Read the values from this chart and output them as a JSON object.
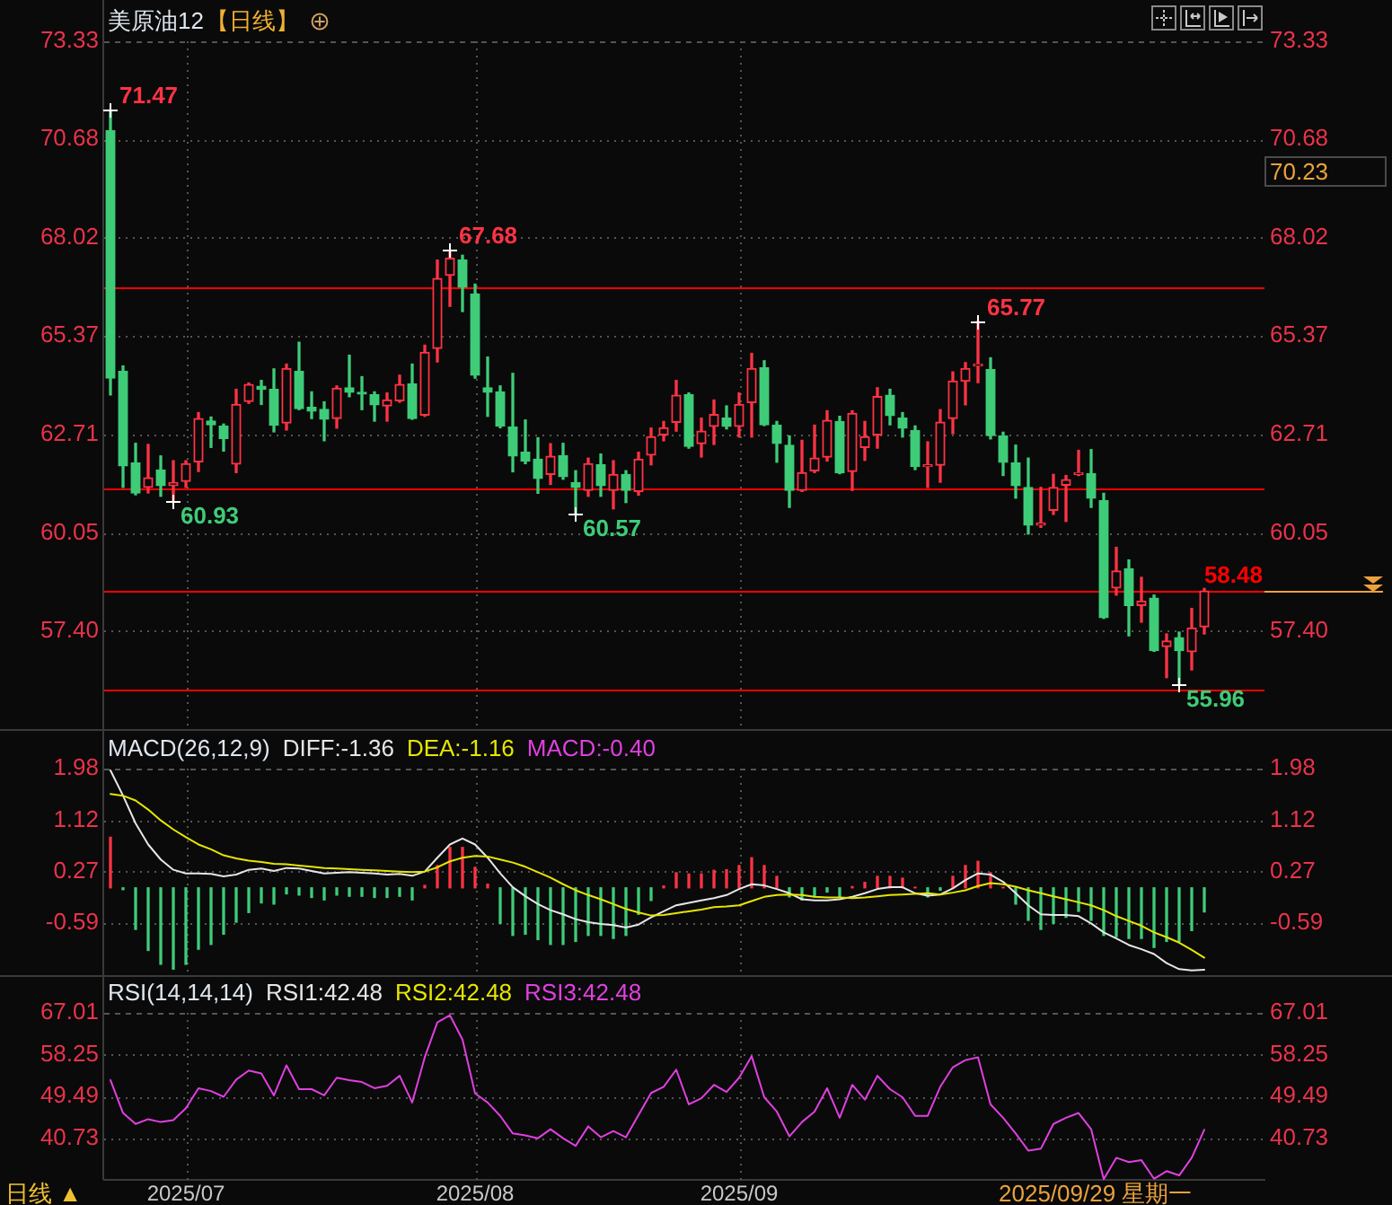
{
  "chart_data": [
    {
      "type": "candlestick",
      "title": "美原油12",
      "subtitle": "【日线】",
      "categories": [
        null,
        null,
        null,
        null,
        null,
        null,
        "2025/07",
        null,
        null,
        null,
        null,
        null,
        null,
        null,
        null,
        null,
        null,
        null,
        null,
        null,
        null,
        null,
        null,
        null,
        null,
        null,
        null,
        null,
        null,
        "2025/08",
        null,
        null,
        null,
        null,
        null,
        null,
        null,
        null,
        null,
        null,
        null,
        null,
        null,
        null,
        null,
        null,
        null,
        null,
        null,
        null,
        "2025/09",
        null,
        null,
        null,
        null,
        null,
        null,
        null,
        null,
        null,
        null,
        null,
        null,
        null,
        null,
        null,
        null,
        null,
        null,
        null,
        null,
        null,
        null,
        null,
        null,
        null,
        null,
        null,
        null,
        null,
        null,
        null,
        null,
        null,
        null,
        null,
        null,
        null
      ],
      "ohlc": [
        [
          70.92,
          71.47,
          63.78,
          64.23
        ],
        [
          64.41,
          64.56,
          61.28,
          61.86
        ],
        [
          61.94,
          62.47,
          61.08,
          61.13
        ],
        [
          61.28,
          62.44,
          61.13,
          61.54
        ],
        [
          61.75,
          62.13,
          61.04,
          61.33
        ],
        [
          61.33,
          62,
          60.93,
          61.41
        ],
        [
          61.44,
          62,
          61.28,
          61.92
        ],
        [
          61.97,
          63.3,
          61.71,
          63.14
        ],
        [
          63.07,
          63.18,
          62.36,
          62.97
        ],
        [
          62.93,
          62.99,
          62.26,
          62.6
        ],
        [
          61.91,
          63.93,
          61.68,
          63.52
        ],
        [
          63.6,
          64.1,
          63.55,
          64.06
        ],
        [
          64.01,
          64.17,
          63.52,
          63.93
        ],
        [
          63.93,
          64.48,
          62.78,
          62.96
        ],
        [
          63.02,
          64.61,
          62.83,
          64.49
        ],
        [
          64.41,
          65.2,
          63.38,
          63.41
        ],
        [
          63.44,
          63.86,
          63.14,
          63.34
        ],
        [
          63.39,
          63.59,
          62.54,
          63.12
        ],
        [
          63.14,
          64.02,
          62.88,
          63.96
        ],
        [
          63.97,
          64.85,
          63.73,
          63.85
        ],
        [
          63.83,
          64.27,
          63.38,
          63.8
        ],
        [
          63.78,
          63.86,
          63.07,
          63.51
        ],
        [
          63.48,
          63.83,
          63.07,
          63.64
        ],
        [
          63.62,
          64.31,
          63.58,
          64.06
        ],
        [
          64.07,
          64.61,
          63.12,
          63.14
        ],
        [
          63.23,
          65.12,
          63.2,
          64.93
        ],
        [
          65.03,
          67.42,
          64.67,
          66.92
        ],
        [
          67.01,
          67.68,
          66.17,
          67.47
        ],
        [
          67.42,
          67.55,
          66.03,
          66.69
        ],
        [
          66.5,
          66.77,
          64.23,
          64.31
        ],
        [
          63.97,
          64.8,
          63.2,
          63.85
        ],
        [
          63.86,
          64.02,
          62.89,
          62.94
        ],
        [
          62.91,
          64.36,
          61.7,
          62.13
        ],
        [
          62.23,
          63.1,
          61.92,
          61.99
        ],
        [
          62.04,
          62.62,
          61.12,
          61.52
        ],
        [
          61.63,
          62.46,
          61.36,
          62.12
        ],
        [
          62.13,
          62.47,
          61.5,
          61.57
        ],
        [
          61.41,
          61.73,
          60.57,
          61.28
        ],
        [
          61.2,
          62.07,
          61.04,
          61.92
        ],
        [
          61.89,
          62.18,
          61.04,
          61.33
        ],
        [
          61.2,
          62,
          60.7,
          61.63
        ],
        [
          61.63,
          61.73,
          60.87,
          61.2
        ],
        [
          61.17,
          62.23,
          61.07,
          62.04
        ],
        [
          62.15,
          62.88,
          61.89,
          62.65
        ],
        [
          62.7,
          63.06,
          62.54,
          62.89
        ],
        [
          63.04,
          64.17,
          62.8,
          63.77
        ],
        [
          63.78,
          63.83,
          62.34,
          62.39
        ],
        [
          62.46,
          63.15,
          62.1,
          62.8
        ],
        [
          62.93,
          63.64,
          62.44,
          63.25
        ],
        [
          63.15,
          63.48,
          62.86,
          62.93
        ],
        [
          62.93,
          63.83,
          62.64,
          63.52
        ],
        [
          63.57,
          64.9,
          62.64,
          64.49
        ],
        [
          64.51,
          64.7,
          62.95,
          62.97
        ],
        [
          62.96,
          63.06,
          61.96,
          62.47
        ],
        [
          62.42,
          62.67,
          60.74,
          61.2
        ],
        [
          61.2,
          62.55,
          61.17,
          61.68
        ],
        [
          61.73,
          62.96,
          61.68,
          62.07
        ],
        [
          62.1,
          63.35,
          61.99,
          63.09
        ],
        [
          63.06,
          63.2,
          61.65,
          61.67
        ],
        [
          61.71,
          63.35,
          61.2,
          63.28
        ],
        [
          62.36,
          63.06,
          62.01,
          62.65
        ],
        [
          62.7,
          63.97,
          62.34,
          63.73
        ],
        [
          63.77,
          63.93,
          62.97,
          63.22
        ],
        [
          63.15,
          63.3,
          62.64,
          62.88
        ],
        [
          62.81,
          62.94,
          61.76,
          61.84
        ],
        [
          61.84,
          62.51,
          61.28,
          61.89
        ],
        [
          61.88,
          63.38,
          61.42,
          63.04
        ],
        [
          63.14,
          64.4,
          62.73,
          64.15
        ],
        [
          64.15,
          64.65,
          63.51,
          64.49
        ],
        [
          64.56,
          65.77,
          64.11,
          64.61
        ],
        [
          64.46,
          64.78,
          62.59,
          62.68
        ],
        [
          62.67,
          62.77,
          61.6,
          61.96
        ],
        [
          61.94,
          62.42,
          60.99,
          61.33
        ],
        [
          61.28,
          62.07,
          60.02,
          60.26
        ],
        [
          60.26,
          61.28,
          60.2,
          60.31
        ],
        [
          60.66,
          61.63,
          60.55,
          61.28
        ],
        [
          61.34,
          61.6,
          60.36,
          61.49
        ],
        [
          61.63,
          62.28,
          61.6,
          61.68
        ],
        [
          61.65,
          62.3,
          60.74,
          60.99
        ],
        [
          60.92,
          61.12,
          57.74,
          57.76
        ],
        [
          58.56,
          59.66,
          58.37,
          59.02
        ],
        [
          59.08,
          59.32,
          57.27,
          58.09
        ],
        [
          58.09,
          58.85,
          57.64,
          58.21
        ],
        [
          58.29,
          58.37,
          56.85,
          56.87
        ],
        [
          56.98,
          57.32,
          56.14,
          57.13
        ],
        [
          57.22,
          57.37,
          55.96,
          56.87
        ],
        [
          56.84,
          58.01,
          56.35,
          57.48
        ],
        [
          57.51,
          58.55,
          57.32,
          58.48
        ]
      ],
      "value_labels": [
        "71.47",
        null,
        null,
        null,
        null,
        "60.93",
        null,
        null,
        null,
        null,
        null,
        null,
        null,
        null,
        null,
        null,
        null,
        null,
        null,
        null,
        null,
        null,
        null,
        null,
        null,
        null,
        null,
        "67.68",
        null,
        null,
        null,
        null,
        null,
        null,
        null,
        null,
        null,
        "60.57",
        null,
        null,
        null,
        null,
        null,
        null,
        null,
        null,
        null,
        null,
        null,
        null,
        null,
        null,
        null,
        null,
        null,
        null,
        null,
        null,
        null,
        null,
        null,
        null,
        null,
        null,
        null,
        null,
        null,
        null,
        null,
        "65.77",
        null,
        null,
        null,
        null,
        null,
        null,
        null,
        null,
        null,
        null,
        null,
        null,
        null,
        null,
        null,
        "55.96",
        null,
        null
      ],
      "colors": [
        "#3ecc78",
        "#3ecc78",
        "#3ecc78",
        "#ff3344",
        "#3ecc78",
        "#ff3344",
        "#ff3344",
        "#ff3344",
        "#3ecc78",
        "#3ecc78",
        "#ff3344",
        "#ff3344",
        "#3ecc78",
        "#3ecc78",
        "#ff3344",
        "#3ecc78",
        "#3ecc78",
        "#3ecc78",
        "#ff3344",
        "#3ecc78",
        "#3ecc78",
        "#3ecc78",
        "#ff3344",
        "#ff3344",
        "#3ecc78",
        "#ff3344",
        "#ff3344",
        "#ff3344",
        "#3ecc78",
        "#3ecc78",
        "#3ecc78",
        "#3ecc78",
        "#3ecc78",
        "#3ecc78",
        "#3ecc78",
        "#ff3344",
        "#3ecc78",
        "#3ecc78",
        "#ff3344",
        "#3ecc78",
        "#ff3344",
        "#3ecc78",
        "#ff3344",
        "#ff3344",
        "#ff3344",
        "#ff3344",
        "#3ecc78",
        "#ff3344",
        "#ff3344",
        "#3ecc78",
        "#ff3344",
        "#ff3344",
        "#3ecc78",
        "#3ecc78",
        "#3ecc78",
        "#ff3344",
        "#ff3344",
        "#ff3344",
        "#3ecc78",
        "#ff3344",
        "#ff3344",
        "#ff3344",
        "#3ecc78",
        "#3ecc78",
        "#3ecc78",
        "#ff3344",
        "#ff3344",
        "#ff3344",
        "#ff3344",
        "#ff3344",
        "#3ecc78",
        "#3ecc78",
        "#3ecc78",
        "#3ecc78",
        "#ff3344",
        "#ff3344",
        "#ff3344",
        "#ff3344",
        "#3ecc78",
        "#3ecc78",
        "#ff3344",
        "#3ecc78",
        "#ff3344",
        "#3ecc78",
        "#ff3344",
        "#3ecc78",
        "#ff3344",
        "#ff3344"
      ],
      "ylim": [
        54.75,
        73.33
      ],
      "yticks": [
        {
          "value": 57.4,
          "label": "57.40"
        },
        60.05,
        62.71,
        65.37,
        68.02,
        70.68,
        73.33
      ],
      "y2lim": [
        54.75,
        73.33
      ],
      "y2ticks": [
        {
          "value": 57.4,
          "label": "57.40"
        },
        60.05,
        62.71,
        65.37,
        68.02,
        70.68,
        73.33
      ],
      "grid": true,
      "tick_labels": "y",
      "ref_lines": [
        {
          "axis": "y",
          "value": 66.67,
          "color": "#ff0000"
        },
        {
          "axis": "y",
          "value": 61.25,
          "color": "#ff0000"
        },
        {
          "axis": "y",
          "value": 55.82,
          "color": "#ff0000"
        },
        {
          "axis": "y",
          "value": 58.48,
          "label": "58.48",
          "color": "#ff0000"
        }
      ],
      "annotations": [
        "70.23"
      ]
    },
    {
      "type": "line",
      "title": "MACD(26,12,9)",
      "categories": [
        null,
        null,
        null,
        null,
        null,
        null,
        "2025/07",
        null,
        null,
        null,
        null,
        null,
        null,
        null,
        null,
        null,
        null,
        null,
        null,
        null,
        null,
        null,
        null,
        null,
        null,
        null,
        null,
        null,
        null,
        "2025/08",
        null,
        null,
        null,
        null,
        null,
        null,
        null,
        null,
        null,
        null,
        null,
        null,
        null,
        null,
        null,
        null,
        null,
        null,
        null,
        null,
        "2025/09",
        null,
        null,
        null,
        null,
        null,
        null,
        null,
        null,
        null,
        null,
        null,
        null,
        null,
        null,
        null,
        null,
        null,
        null,
        null,
        null,
        null,
        null,
        null,
        null,
        null,
        null,
        null,
        null,
        null,
        null,
        null,
        null,
        null,
        null,
        null,
        null,
        null
      ],
      "series": [
        {
          "name": "DIFF:-1.36",
          "color": "#e6e6e6",
          "values": [
            1.95,
            1.53,
            1.07,
            0.72,
            0.47,
            0.3,
            0.24,
            0.24,
            0.23,
            0.19,
            0.22,
            0.3,
            0.32,
            0.28,
            0.33,
            0.32,
            0.28,
            0.24,
            0.25,
            0.26,
            0.25,
            0.24,
            0.22,
            0.23,
            0.2,
            0.27,
            0.5,
            0.72,
            0.82,
            0.72,
            0.5,
            0.24,
            0.01,
            -0.14,
            -0.27,
            -0.37,
            -0.44,
            -0.52,
            -0.57,
            -0.6,
            -0.62,
            -0.66,
            -0.61,
            -0.49,
            -0.39,
            -0.29,
            -0.25,
            -0.21,
            -0.17,
            -0.12,
            -0.02,
            0.06,
            0.04,
            -0.02,
            -0.09,
            -0.19,
            -0.21,
            -0.21,
            -0.19,
            -0.15,
            -0.09,
            -0.02,
            0.01,
            0.01,
            -0.09,
            -0.13,
            -0.11,
            -0.01,
            0.13,
            0.24,
            0.22,
            0.1,
            -0.09,
            -0.29,
            -0.44,
            -0.45,
            -0.45,
            -0.47,
            -0.59,
            -0.74,
            -0.84,
            -0.95,
            -1.02,
            -1.1,
            -1.25,
            -1.35,
            -1.37,
            -1.36
          ]
        },
        {
          "name": "DEA:-1.16",
          "color": "#e6e600",
          "values": [
            1.56,
            1.53,
            1.45,
            1.3,
            1.12,
            0.97,
            0.84,
            0.72,
            0.64,
            0.54,
            0.49,
            0.45,
            0.43,
            0.4,
            0.39,
            0.37,
            0.35,
            0.33,
            0.32,
            0.31,
            0.3,
            0.29,
            0.28,
            0.27,
            0.26,
            0.27,
            0.34,
            0.44,
            0.5,
            0.53,
            0.52,
            0.47,
            0.42,
            0.35,
            0.26,
            0.17,
            0.06,
            -0.04,
            -0.12,
            -0.19,
            -0.27,
            -0.35,
            -0.41,
            -0.46,
            -0.45,
            -0.42,
            -0.39,
            -0.36,
            -0.32,
            -0.31,
            -0.29,
            -0.22,
            -0.15,
            -0.12,
            -0.11,
            -0.12,
            -0.15,
            -0.16,
            -0.16,
            -0.17,
            -0.16,
            -0.14,
            -0.12,
            -0.11,
            -0.1,
            -0.09,
            -0.11,
            -0.08,
            -0.04,
            0.03,
            0.08,
            0.06,
            0.02,
            -0.04,
            -0.09,
            -0.14,
            -0.19,
            -0.24,
            -0.29,
            -0.37,
            -0.47,
            -0.55,
            -0.63,
            -0.74,
            -0.82,
            -0.91,
            -1.03,
            -1.16
          ]
        },
        {
          "type": "bar",
          "values": [
            0.84,
            -0.03,
            -0.69,
            -1.04,
            -1.27,
            -1.35,
            -1.27,
            -1.02,
            -0.94,
            -0.77,
            -0.57,
            -0.41,
            -0.25,
            -0.27,
            -0.1,
            -0.12,
            -0.16,
            -0.2,
            -0.12,
            -0.14,
            -0.14,
            -0.16,
            -0.16,
            -0.14,
            -0.2,
            0.04,
            0.37,
            0.67,
            0.67,
            0.34,
            0.06,
            -0.59,
            -0.79,
            -0.77,
            -0.86,
            -0.94,
            -0.94,
            -0.89,
            -0.79,
            -0.79,
            -0.84,
            -0.79,
            -0.44,
            -0.21,
            0.03,
            0.25,
            0.23,
            0.23,
            0.29,
            0.3,
            0.37,
            0.5,
            0.37,
            0.19,
            -0.15,
            -0.2,
            -0.15,
            -0.07,
            -0.16,
            0.02,
            0.09,
            0.19,
            0.19,
            0.16,
            0.01,
            -0.15,
            -0.04,
            0.19,
            0.37,
            0.44,
            0.25,
            0.01,
            -0.27,
            -0.54,
            -0.69,
            -0.59,
            -0.49,
            -0.39,
            -0.54,
            -0.79,
            -0.81,
            -0.84,
            -0.84,
            -0.99,
            -0.89,
            -0.89,
            -0.71,
            -0.4
          ],
          "colors": [
            "#ff3344",
            "#3ecc78",
            "#3ecc78",
            "#3ecc78",
            "#3ecc78",
            "#3ecc78",
            "#3ecc78",
            "#3ecc78",
            "#3ecc78",
            "#3ecc78",
            "#3ecc78",
            "#3ecc78",
            "#3ecc78",
            "#3ecc78",
            "#3ecc78",
            "#3ecc78",
            "#3ecc78",
            "#3ecc78",
            "#3ecc78",
            "#3ecc78",
            "#3ecc78",
            "#3ecc78",
            "#3ecc78",
            "#3ecc78",
            "#3ecc78",
            "#ff3344",
            "#ff3344",
            "#ff3344",
            "#ff3344",
            "#ff3344",
            "#ff3344",
            "#3ecc78",
            "#3ecc78",
            "#3ecc78",
            "#3ecc78",
            "#3ecc78",
            "#3ecc78",
            "#3ecc78",
            "#3ecc78",
            "#3ecc78",
            "#3ecc78",
            "#3ecc78",
            "#3ecc78",
            "#3ecc78",
            "#ff3344",
            "#ff3344",
            "#ff3344",
            "#ff3344",
            "#ff3344",
            "#ff3344",
            "#ff3344",
            "#ff3344",
            "#ff3344",
            "#ff3344",
            "#3ecc78",
            "#3ecc78",
            "#3ecc78",
            "#3ecc78",
            "#3ecc78",
            "#ff3344",
            "#ff3344",
            "#ff3344",
            "#ff3344",
            "#ff3344",
            "#ff3344",
            "#3ecc78",
            "#3ecc78",
            "#ff3344",
            "#ff3344",
            "#ff3344",
            "#ff3344",
            "#ff3344",
            "#3ecc78",
            "#3ecc78",
            "#3ecc78",
            "#3ecc78",
            "#3ecc78",
            "#3ecc78",
            "#3ecc78",
            "#3ecc78",
            "#3ecc78",
            "#3ecc78",
            "#3ecc78",
            "#3ecc78",
            "#3ecc78",
            "#3ecc78",
            "#3ecc78",
            "#3ecc78"
          ]
        }
      ],
      "ylim": [
        -1.45,
        1.98
      ],
      "yticks": [
        -0.59,
        0.27,
        1.12,
        1.98
      ],
      "y2lim": [
        -1.45,
        1.98
      ],
      "y2ticks": [
        -0.59,
        0.27,
        1.12,
        1.98
      ],
      "grid": true,
      "legend": "top left",
      "tick_labels": "y",
      "annotations": [
        "MACD:-0.40"
      ]
    },
    {
      "type": "line",
      "title": "RSI(14,14,14)",
      "categories": [
        null,
        null,
        null,
        null,
        null,
        null,
        "2025/07",
        null,
        null,
        null,
        null,
        null,
        null,
        null,
        null,
        null,
        null,
        null,
        null,
        null,
        null,
        null,
        null,
        null,
        null,
        null,
        null,
        null,
        null,
        "2025/08",
        null,
        null,
        null,
        null,
        null,
        null,
        null,
        null,
        null,
        null,
        null,
        null,
        null,
        null,
        null,
        null,
        null,
        null,
        null,
        null,
        "2025/09",
        null,
        null,
        null,
        null,
        null,
        null,
        null,
        null,
        null,
        null,
        null,
        null,
        null,
        null,
        null,
        null,
        null,
        null,
        null,
        null,
        null,
        null,
        null,
        null,
        null,
        null,
        null,
        null,
        null,
        null,
        null,
        null,
        null,
        null,
        null,
        null,
        null
      ],
      "series": [
        {
          "name": "RSI1:42.48",
          "color": "#e6e6e6",
          "values": [
            null,
            null,
            null,
            null,
            null,
            null,
            null,
            null,
            null,
            null,
            null,
            null,
            null,
            null,
            null,
            null,
            null,
            null,
            null,
            null,
            null,
            null,
            null,
            null,
            null,
            null,
            null,
            null,
            null,
            null,
            null,
            null,
            null,
            null,
            null,
            null,
            null,
            null,
            null,
            null,
            null,
            null,
            null,
            null,
            null,
            null,
            null,
            null,
            null,
            null,
            null,
            null,
            null,
            null,
            null,
            null,
            null,
            null,
            null,
            null,
            null,
            null,
            null,
            null,
            null,
            null,
            null,
            null,
            null,
            null,
            null,
            null,
            null,
            null,
            null,
            null,
            null,
            null,
            null,
            null,
            null,
            null,
            null,
            null,
            null,
            null,
            null,
            null
          ]
        },
        {
          "name": "RSI2:42.48",
          "color": "#e6e600",
          "values": [
            null,
            null,
            null,
            null,
            null,
            null,
            null,
            null,
            null,
            null,
            null,
            null,
            null,
            null,
            null,
            null,
            null,
            null,
            null,
            null,
            null,
            null,
            null,
            null,
            null,
            null,
            null,
            null,
            null,
            null,
            null,
            null,
            null,
            null,
            null,
            null,
            null,
            null,
            null,
            null,
            null,
            null,
            null,
            null,
            null,
            null,
            null,
            null,
            null,
            null,
            null,
            null,
            null,
            null,
            null,
            null,
            null,
            null,
            null,
            null,
            null,
            null,
            null,
            null,
            null,
            null,
            null,
            null,
            null,
            null,
            null,
            null,
            null,
            null,
            null,
            null,
            null,
            null,
            null,
            null,
            null,
            null,
            null,
            null,
            null,
            null,
            null,
            null
          ]
        },
        {
          "name": "RSI3:42.48",
          "color": "#e040e0",
          "values": [
            52.9,
            46,
            43.7,
            44.7,
            44.1,
            44.5,
            47,
            51.2,
            50.6,
            49.4,
            53,
            54.9,
            54.3,
            49.7,
            56,
            51,
            51,
            49.7,
            53.4,
            52.9,
            52.5,
            51.2,
            51.7,
            53.8,
            48.2,
            57.7,
            65,
            66.5,
            61.4,
            50.1,
            48.2,
            45.4,
            41.7,
            41.3,
            40.7,
            42.6,
            40.7,
            39.1,
            43.2,
            40.9,
            42.2,
            40.9,
            45.6,
            50.2,
            51.5,
            55.1,
            47.8,
            49.1,
            51.9,
            50.4,
            53.4,
            57.9,
            49.3,
            46.3,
            41.1,
            44.1,
            46.3,
            51.2,
            45,
            51.9,
            48.8,
            53.8,
            51,
            49.3,
            45.4,
            45.4,
            51.5,
            55.6,
            57.1,
            57.7,
            47.8,
            45,
            41.7,
            38.1,
            38.5,
            43.7,
            45,
            46,
            42.6,
            32.1,
            36.6,
            35.7,
            36.1,
            32.2,
            33.8,
            32.9,
            36.6,
            42.48
          ]
        }
      ],
      "ylim": [
        31.97,
        67.01
      ],
      "yticks": [
        40.73,
        49.49,
        58.25,
        67.01
      ],
      "y2lim": [
        31.97,
        67.01
      ],
      "y2ticks": [
        40.73,
        49.49,
        58.25,
        67.01
      ],
      "grid": true,
      "legend": "top left",
      "annotations": [
        "日线 ▲",
        "2025/09/29 星期一"
      ]
    }
  ]
}
